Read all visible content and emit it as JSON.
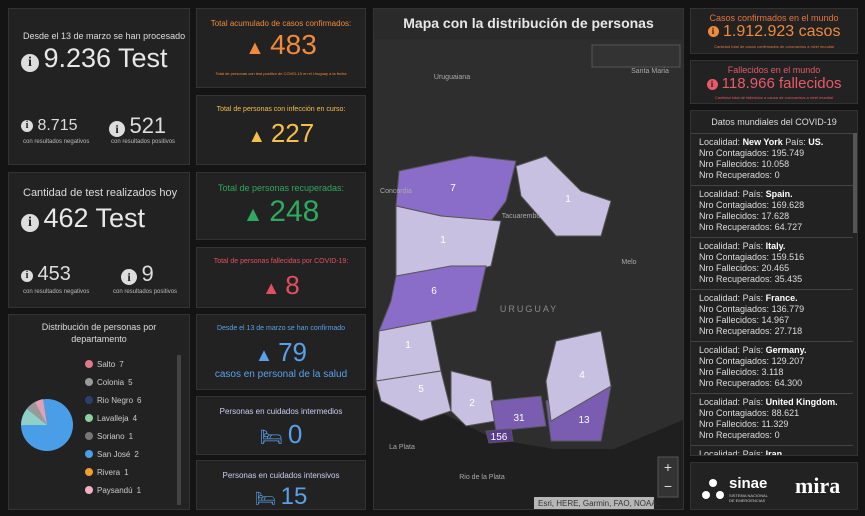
{
  "tests_total": {
    "title": "Desde el 13 de marzo se han procesado",
    "value": "9.236 Test",
    "negative": "8.715",
    "negative_label": "con resultados negativos",
    "positive": "521",
    "positive_label": "con resultados positivos"
  },
  "tests_today": {
    "title": "Cantidad de test realizados hoy",
    "value": "462 Test",
    "negative": "453",
    "negative_label": "con resultados negativos",
    "positive": "9",
    "positive_label": "con resultados positivos"
  },
  "distribution": {
    "title": "Distribución de personas por departamento",
    "legend": [
      {
        "name": "Salto",
        "value": 7
      },
      {
        "name": "Colonia",
        "value": 5
      },
      {
        "name": "Rio Negro",
        "value": 6
      },
      {
        "name": "Lavalleja",
        "value": 4
      },
      {
        "name": "Soriano",
        "value": 1
      },
      {
        "name": "San José",
        "value": 2
      },
      {
        "name": "Rivera",
        "value": 1
      },
      {
        "name": "Paysandú",
        "value": 1
      }
    ]
  },
  "indicators": [
    {
      "title": "Total acumulado de casos confirmados:",
      "value": "483",
      "note": "Total de personas con test positivo de COVID-19 en el Uruguay a la fecha"
    },
    {
      "title": "Total de personas con infección en curso:",
      "value": "227"
    },
    {
      "title": "Total de personas recuperadas:",
      "value": "248"
    },
    {
      "title": "Total de personas fallecidas por COVID-19:",
      "value": "8"
    },
    {
      "title": "Desde el 13 de marzo se han confirmado",
      "value": "79",
      "note": "casos en personal de la salud"
    },
    {
      "title": "Personas en cuidados intermedios",
      "value": "0"
    },
    {
      "title": "Personas en cuidados intensivos",
      "value": "15"
    }
  ],
  "map": {
    "title": "Mapa con la distribución de personas",
    "places": [
      "Uruguaiana",
      "Santa Maria",
      "Concordia",
      "Tacuarembó",
      "Melo",
      "URUGUAY",
      "La Plata",
      "Rio de la Plata"
    ],
    "counts": [
      "7",
      "1",
      "1",
      "6",
      "1",
      "5",
      "2",
      "31",
      "13",
      "4",
      "156"
    ],
    "attribution": "Esri, HERE, Garmin, FAO, NOAA..."
  },
  "world": {
    "confirmed_title": "Casos confirmados en el mundo",
    "confirmed": "1.912.923 casos",
    "confirmed_note": "Cantidad total de casos confirmados de coronavirus a nivel mundial",
    "deaths_title": "Fallecidos en el mundo",
    "deaths": "118.966 fallecidos",
    "deaths_note": "Cantidad total de fallecidos a causa de coronavirus a nivel mundial"
  },
  "world_list": {
    "title": "Datos mundiales del COVID-19",
    "labels": {
      "locality": "Localidad:",
      "country": "País:",
      "infected": "Nro Contagiados:",
      "deaths": "Nro Fallecidos:",
      "recovered": "Nro Recuperados:"
    },
    "items": [
      {
        "locality": "New York",
        "country": "US.",
        "infected": "195.749",
        "deaths": "10.058",
        "recovered": "0"
      },
      {
        "country": "Spain.",
        "infected": "169.628",
        "deaths": "17.628",
        "recovered": "64.727"
      },
      {
        "country": "Italy.",
        "infected": "159.516",
        "deaths": "20.465",
        "recovered": "35.435"
      },
      {
        "country": "France.",
        "infected": "136.779",
        "deaths": "14.967",
        "recovered": "27.718"
      },
      {
        "country": "Germany.",
        "infected": "129.207",
        "deaths": "3.118",
        "recovered": "64.300"
      },
      {
        "country": "United Kingdom.",
        "infected": "88.621",
        "deaths": "11.329",
        "recovered": "0"
      },
      {
        "country": "Iran."
      }
    ]
  },
  "logos": {
    "sinae": "sinae",
    "sinae_sub": "SISTEMA NACIONAL DE EMERGENCIAS",
    "mira": "mira"
  }
}
